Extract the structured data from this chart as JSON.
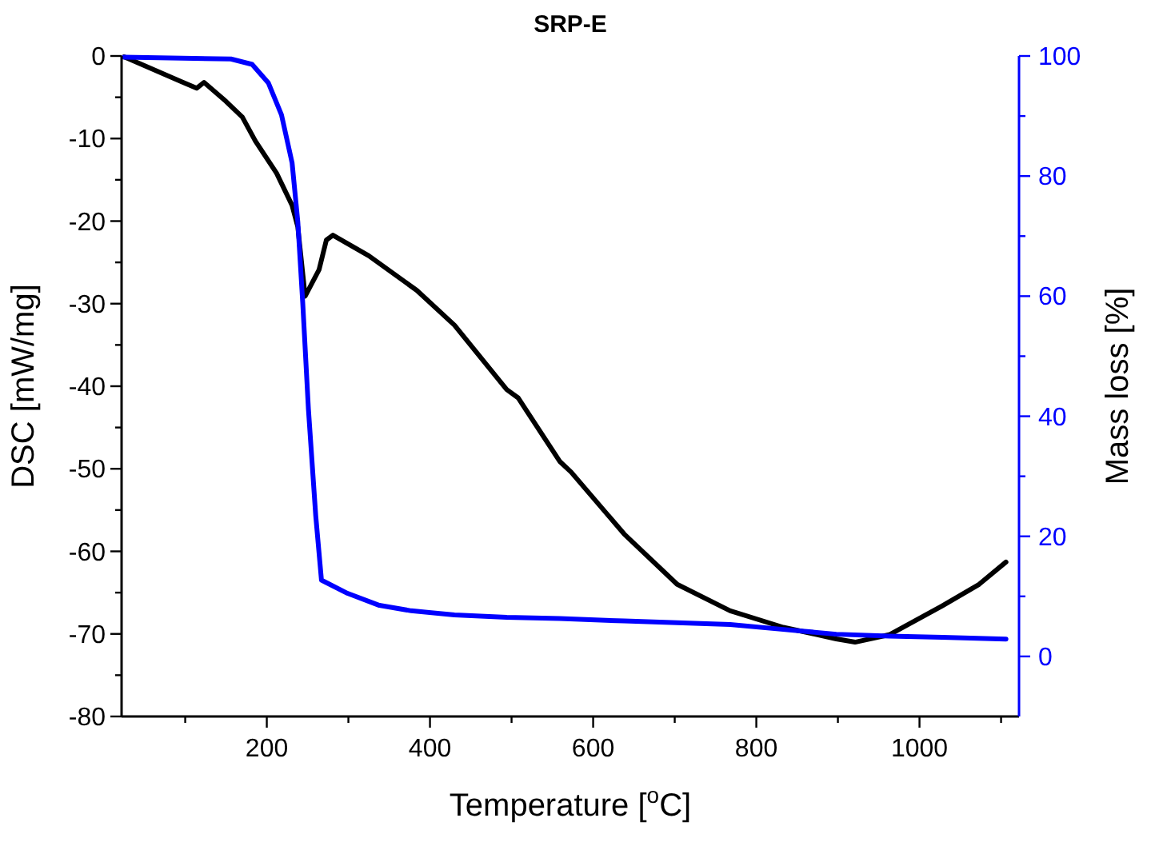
{
  "chart_data": {
    "type": "line",
    "title": "SRP-E",
    "xlabel": "Temperature [$^{o}$C]",
    "ylabel": "DSC [mW/mg]",
    "y2label": "Mass loss [%]",
    "xlim": [
      22,
      1122
    ],
    "xticks": [
      {
        "value": 100,
        "label": null
      },
      200,
      {
        "value": 300,
        "label": null
      },
      400,
      {
        "value": 500,
        "label": null
      },
      600,
      {
        "value": 700,
        "label": null
      },
      800,
      {
        "value": 900,
        "label": null
      },
      1000,
      {
        "value": 1100,
        "label": null
      }
    ],
    "ylim": [
      -80,
      0
    ],
    "yticks": [
      -80,
      {
        "value": -75,
        "label": null
      },
      -70,
      {
        "value": -65,
        "label": null
      },
      -60,
      {
        "value": -55,
        "label": null
      },
      -50,
      {
        "value": -45,
        "label": null
      },
      -40,
      {
        "value": -35,
        "label": null
      },
      -30,
      {
        "value": -25,
        "label": null
      },
      -20,
      {
        "value": -15,
        "label": null
      },
      -10,
      {
        "value": -5,
        "label": null
      },
      0
    ],
    "y2lim": [
      -10,
      100
    ],
    "y2ticks": [
      0,
      {
        "value": 10,
        "label": null
      },
      20,
      {
        "value": 30,
        "label": null
      },
      40,
      {
        "value": 50,
        "label": null
      },
      60,
      {
        "value": 70,
        "label": null
      },
      80,
      {
        "value": 90,
        "label": null
      },
      100
    ],
    "grid": false,
    "series": [
      {
        "color": "#000000",
        "x": [
          25,
          95,
          114,
          123,
          150,
          170,
          186,
          212,
          231,
          238,
          247,
          264,
          273,
          281,
          325,
          384,
          430,
          494,
          508,
          559,
          573,
          638,
          703,
          768,
          833,
          898,
          921,
          963,
          1028,
          1073,
          1106
        ],
        "values": [
          -0.1,
          -3.1,
          -3.9,
          -3.2,
          -5.5,
          -7.4,
          -10.3,
          -14.2,
          -18.1,
          -20.7,
          -29.1,
          -25.9,
          -22.3,
          -21.7,
          -24.2,
          -28.4,
          -32.6,
          -40.4,
          -41.4,
          -49.1,
          -50.4,
          -57.9,
          -64.0,
          -67.2,
          -69.2,
          -70.6,
          -71.0,
          -70.1,
          -66.6,
          -64.0,
          -61.3
        ]
      },
      {
        "color": "#0000ff",
        "axis": "y2",
        "x": [
          25,
          156,
          182,
          202,
          218,
          231,
          238,
          244,
          251,
          260,
          267,
          299,
          338,
          377,
          430,
          494,
          559,
          638,
          768,
          833,
          898,
          963,
          1028,
          1106
        ],
        "values": [
          99.8,
          99.5,
          98.6,
          95.5,
          90.2,
          82.2,
          72.4,
          59.0,
          41.2,
          23.4,
          12.7,
          10.5,
          8.5,
          7.6,
          6.9,
          6.5,
          6.3,
          5.9,
          5.3,
          4.5,
          3.7,
          3.4,
          3.2,
          2.9
        ]
      }
    ]
  }
}
